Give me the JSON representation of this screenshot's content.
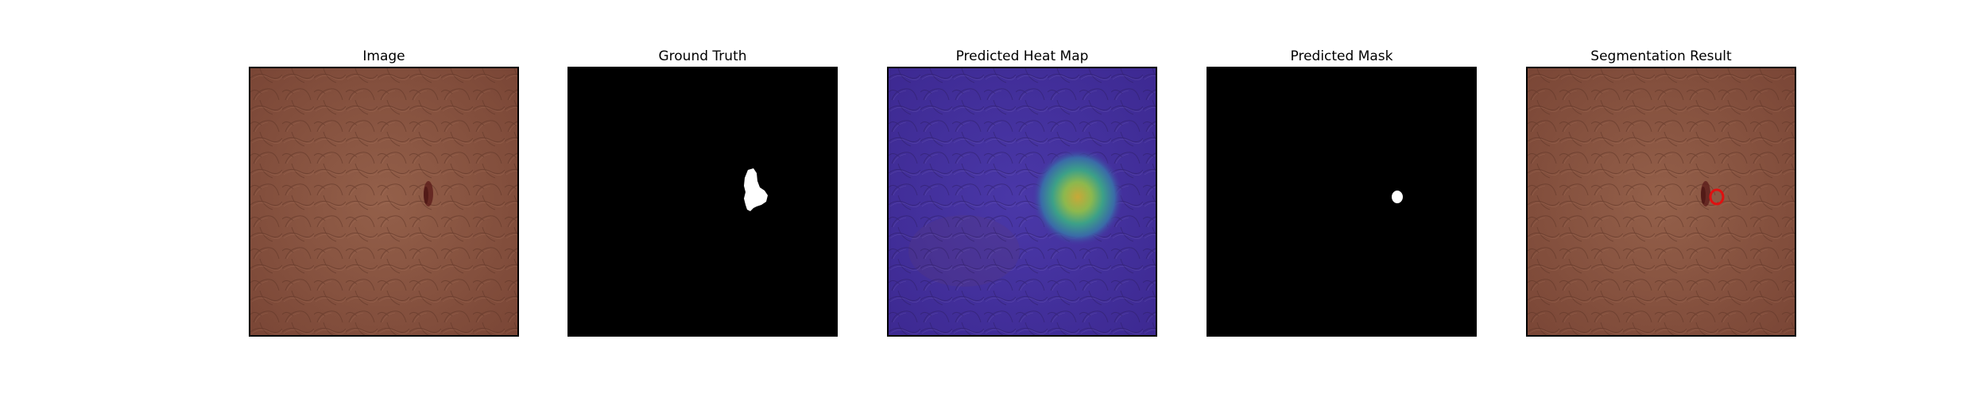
{
  "panels": [
    {
      "title": "Image"
    },
    {
      "title": "Ground Truth"
    },
    {
      "title": "Predicted Heat Map"
    },
    {
      "title": "Predicted Mask"
    },
    {
      "title": "Segmentation Result"
    }
  ],
  "colors": {
    "leather": "#8a5340",
    "leather_dark": "#6a3a2a",
    "defect": "#5a1a18",
    "mask_background": "#000000",
    "mask_foreground": "#ffffff",
    "heatmap_base": "#4630a0",
    "heatmap_hot": "#c8b040",
    "contour": "#e01010"
  }
}
